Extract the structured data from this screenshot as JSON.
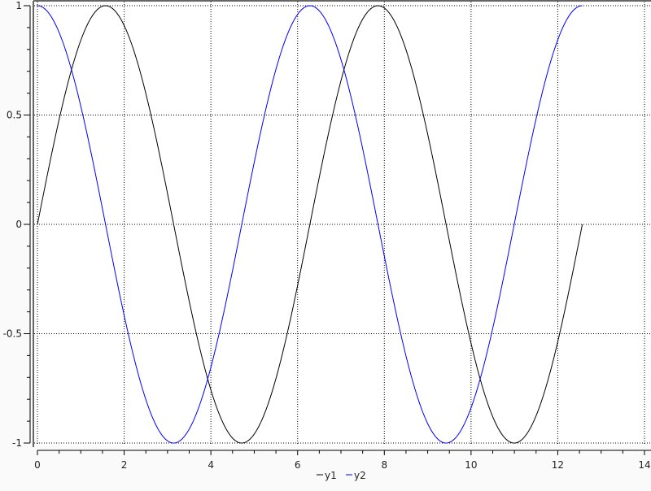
{
  "chart_data": {
    "type": "line",
    "title": "",
    "xlabel": "",
    "ylabel": "",
    "xlim": [
      0,
      14
    ],
    "ylim": [
      -1,
      1
    ],
    "x_major_ticks": [
      0,
      2,
      4,
      6,
      8,
      10,
      12,
      14
    ],
    "x_tick_labels": [
      "0",
      "2",
      "4",
      "6",
      "8",
      "10",
      "12",
      "14"
    ],
    "y_major_ticks": [
      -1,
      -0.5,
      0,
      0.5,
      1
    ],
    "y_tick_labels": [
      "-1",
      "-0.5",
      "0",
      "0.5",
      "1"
    ],
    "x_minor_step": 0.5,
    "y_minor_step": 0.1,
    "grid": true,
    "grid_style": "dotted",
    "legend_position": "bottom-center",
    "x_range_of_data": [
      0,
      12.566
    ],
    "series": [
      {
        "name": "y1",
        "function": "sin(x)",
        "color": "#000000"
      },
      {
        "name": "y2",
        "function": "cos(x)",
        "color": "#0000ff"
      }
    ]
  }
}
